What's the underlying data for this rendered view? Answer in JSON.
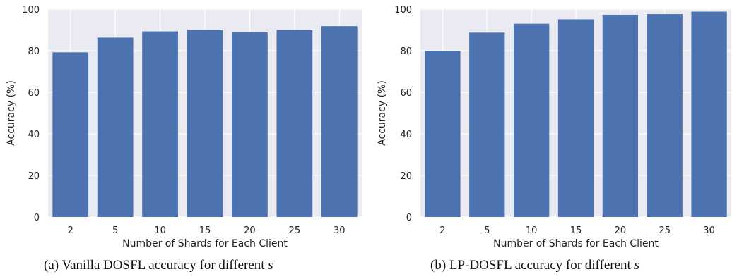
{
  "chart_data": [
    {
      "type": "bar",
      "xlabel": "Number of Shards for Each Client",
      "ylabel": "Accuracy (%)",
      "categories": [
        "2",
        "5",
        "10",
        "15",
        "20",
        "25",
        "30"
      ],
      "values": [
        79.2,
        86.3,
        89.3,
        89.9,
        88.8,
        89.9,
        91.8
      ],
      "ylim": [
        0,
        100
      ],
      "yticks": [
        "0",
        "20",
        "40",
        "60",
        "80",
        "100"
      ],
      "grid": true,
      "bar_color": "#4c72b0",
      "background_color": "#eaeaf2",
      "caption": "(a) Vanilla DOSFL accuracy for different",
      "caption_var": "s"
    },
    {
      "type": "bar",
      "xlabel": "Number of Shards for Each Client",
      "ylabel": "Accuracy (%)",
      "categories": [
        "2",
        "5",
        "10",
        "15",
        "20",
        "25",
        "30"
      ],
      "values": [
        80.0,
        88.7,
        93.0,
        95.1,
        97.3,
        97.6,
        98.8
      ],
      "ylim": [
        0,
        100
      ],
      "yticks": [
        "0",
        "20",
        "40",
        "60",
        "80",
        "100"
      ],
      "grid": true,
      "bar_color": "#4c72b0",
      "background_color": "#eaeaf2",
      "caption": "(b) LP-DOSFL accuracy for different",
      "caption_var": "s"
    }
  ]
}
